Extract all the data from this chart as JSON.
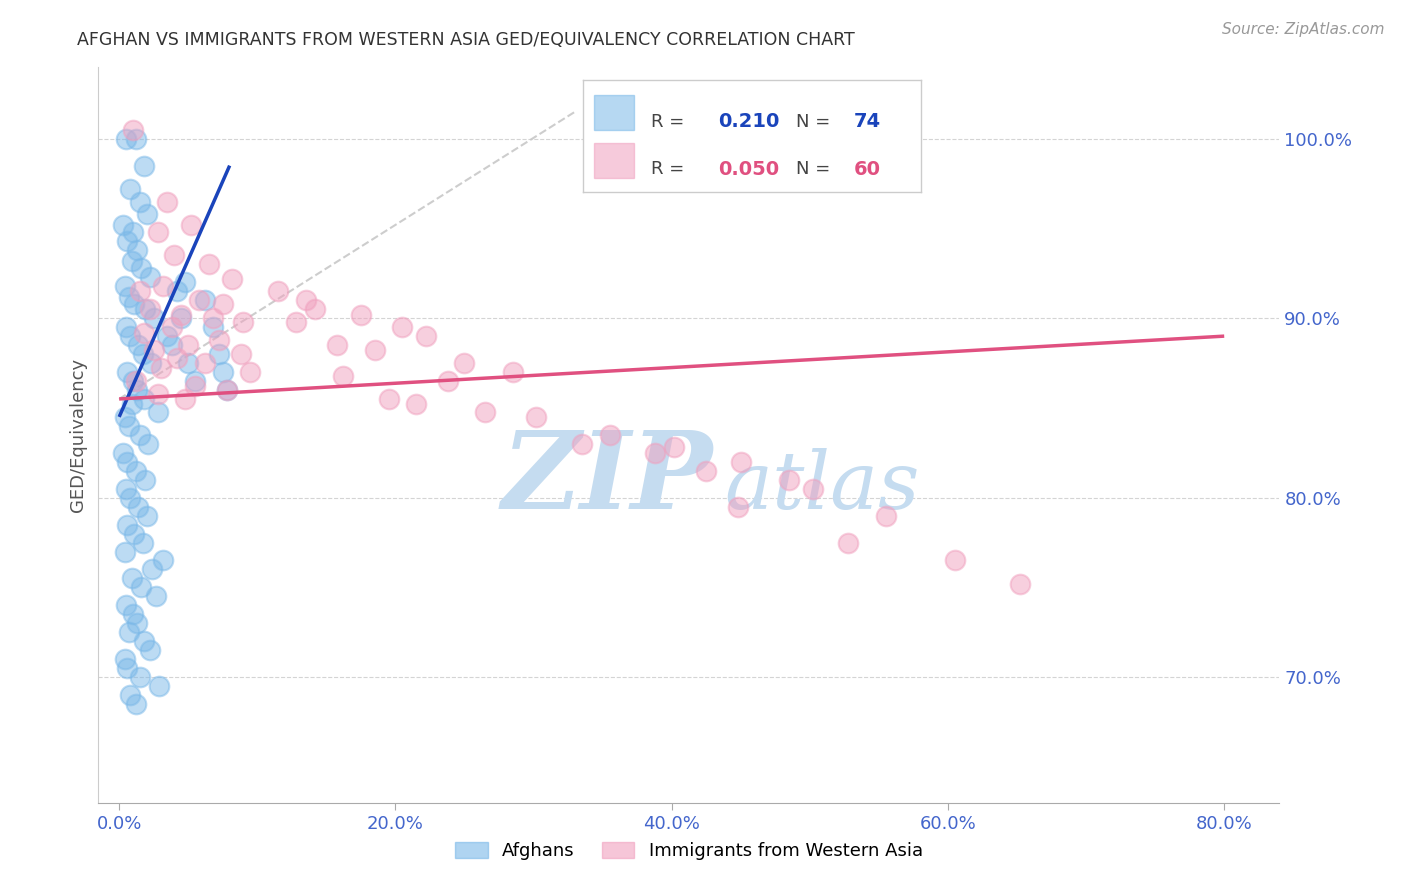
{
  "title": "AFGHAN VS IMMIGRANTS FROM WESTERN ASIA GED/EQUIVALENCY CORRELATION CHART",
  "source": "Source: ZipAtlas.com",
  "xlabel_tick_vals": [
    0.0,
    20.0,
    40.0,
    60.0,
    80.0
  ],
  "xlabel_tick_labels": [
    "0.0%",
    "20.0%",
    "40.0%",
    "60.0%",
    "80.0%"
  ],
  "ylabel_tick_vals": [
    70.0,
    80.0,
    90.0,
    100.0
  ],
  "ylabel_tick_labels": [
    "70.0%",
    "80.0%",
    "90.0%",
    "100.0%"
  ],
  "xlim": [
    -1.5,
    84.0
  ],
  "ylim": [
    63.0,
    104.0
  ],
  "blue_color": "#7ab8e8",
  "pink_color": "#f0a0be",
  "blue_line_color": "#1a44bb",
  "pink_line_color": "#e05080",
  "ref_line_color": "#c8c8c8",
  "grid_color": "#d0d0d0",
  "bg_color": "#ffffff",
  "title_color": "#333333",
  "right_tick_color": "#4466cc",
  "xlabel_color": "#4466cc",
  "ylabel_label": "GED/Equivalency",
  "watermark_zip": "ZIP",
  "watermark_atlas": "atlas",
  "watermark_color_zip": "#c5dcf0",
  "watermark_color_atlas": "#c5dcf0",
  "legend_label_blue": "Afghans",
  "legend_label_pink": "Immigrants from Western Asia",
  "blue_R": "0.210",
  "blue_N": "74",
  "pink_R": "0.050",
  "pink_N": "60",
  "blue_scatter_x": [
    0.5,
    1.2,
    1.8,
    0.8,
    1.5,
    2.0,
    0.3,
    1.0,
    0.6,
    1.3,
    0.9,
    1.6,
    2.2,
    0.4,
    0.7,
    1.1,
    1.9,
    2.5,
    0.5,
    0.8,
    1.4,
    1.7,
    2.3,
    0.6,
    1.0,
    1.3,
    1.8,
    0.9,
    2.8,
    0.4,
    0.7,
    1.5,
    2.1,
    0.3,
    0.6,
    1.2,
    1.9,
    0.5,
    0.8,
    1.4,
    2.0,
    0.6,
    1.1,
    1.7,
    0.4,
    3.2,
    2.4,
    0.9,
    1.6,
    2.7,
    0.5,
    1.0,
    1.3,
    0.7,
    1.8,
    2.2,
    0.4,
    0.6,
    1.5,
    2.9,
    0.8,
    1.2,
    4.5,
    3.8,
    4.2,
    3.5,
    5.0,
    4.8,
    5.5,
    6.2,
    6.8,
    7.2,
    7.5,
    7.8
  ],
  "blue_scatter_y": [
    100.0,
    100.0,
    98.5,
    97.2,
    96.5,
    95.8,
    95.2,
    94.8,
    94.3,
    93.8,
    93.2,
    92.8,
    92.3,
    91.8,
    91.2,
    90.8,
    90.5,
    90.0,
    89.5,
    89.0,
    88.5,
    88.0,
    87.5,
    87.0,
    86.5,
    86.0,
    85.5,
    85.2,
    84.8,
    84.5,
    84.0,
    83.5,
    83.0,
    82.5,
    82.0,
    81.5,
    81.0,
    80.5,
    80.0,
    79.5,
    79.0,
    78.5,
    78.0,
    77.5,
    77.0,
    76.5,
    76.0,
    75.5,
    75.0,
    74.5,
    74.0,
    73.5,
    73.0,
    72.5,
    72.0,
    71.5,
    71.0,
    70.5,
    70.0,
    69.5,
    69.0,
    68.5,
    90.0,
    88.5,
    91.5,
    89.0,
    87.5,
    92.0,
    86.5,
    91.0,
    89.5,
    88.0,
    87.0,
    86.0
  ],
  "pink_scatter_x": [
    1.0,
    3.5,
    5.2,
    2.8,
    4.0,
    6.5,
    8.2,
    3.2,
    1.5,
    5.8,
    7.5,
    2.2,
    4.5,
    6.8,
    9.0,
    3.8,
    1.8,
    7.2,
    5.0,
    2.5,
    8.8,
    4.2,
    6.2,
    3.0,
    9.5,
    1.2,
    5.5,
    7.8,
    2.8,
    4.8,
    11.5,
    14.2,
    13.5,
    12.8,
    17.5,
    20.5,
    15.8,
    22.2,
    18.5,
    25.0,
    28.5,
    16.2,
    23.8,
    19.5,
    26.5,
    30.2,
    21.5,
    35.5,
    40.2,
    33.5,
    38.8,
    45.0,
    42.5,
    48.5,
    50.2,
    44.8,
    55.5,
    52.8,
    60.5,
    65.2
  ],
  "pink_scatter_y": [
    100.5,
    96.5,
    95.2,
    94.8,
    93.5,
    93.0,
    92.2,
    91.8,
    91.5,
    91.0,
    90.8,
    90.5,
    90.2,
    90.0,
    89.8,
    89.5,
    89.2,
    88.8,
    88.5,
    88.2,
    88.0,
    87.8,
    87.5,
    87.2,
    87.0,
    86.5,
    86.2,
    86.0,
    85.8,
    85.5,
    91.5,
    90.5,
    91.0,
    89.8,
    90.2,
    89.5,
    88.5,
    89.0,
    88.2,
    87.5,
    87.0,
    86.8,
    86.5,
    85.5,
    84.8,
    84.5,
    85.2,
    83.5,
    82.8,
    83.0,
    82.5,
    82.0,
    81.5,
    81.0,
    80.5,
    79.5,
    79.0,
    77.5,
    76.5,
    75.2
  ],
  "blue_trend_x0": 0.0,
  "blue_trend_x1": 8.0,
  "blue_trend_y0": 84.5,
  "blue_trend_y1": 98.5,
  "pink_trend_x0": 0.0,
  "pink_trend_x1": 80.0,
  "pink_trend_y0": 85.5,
  "pink_trend_y1": 89.0,
  "ref_line_x0": 0.0,
  "ref_line_x1": 33.0,
  "ref_line_y0": 85.5,
  "ref_line_y1": 101.5
}
